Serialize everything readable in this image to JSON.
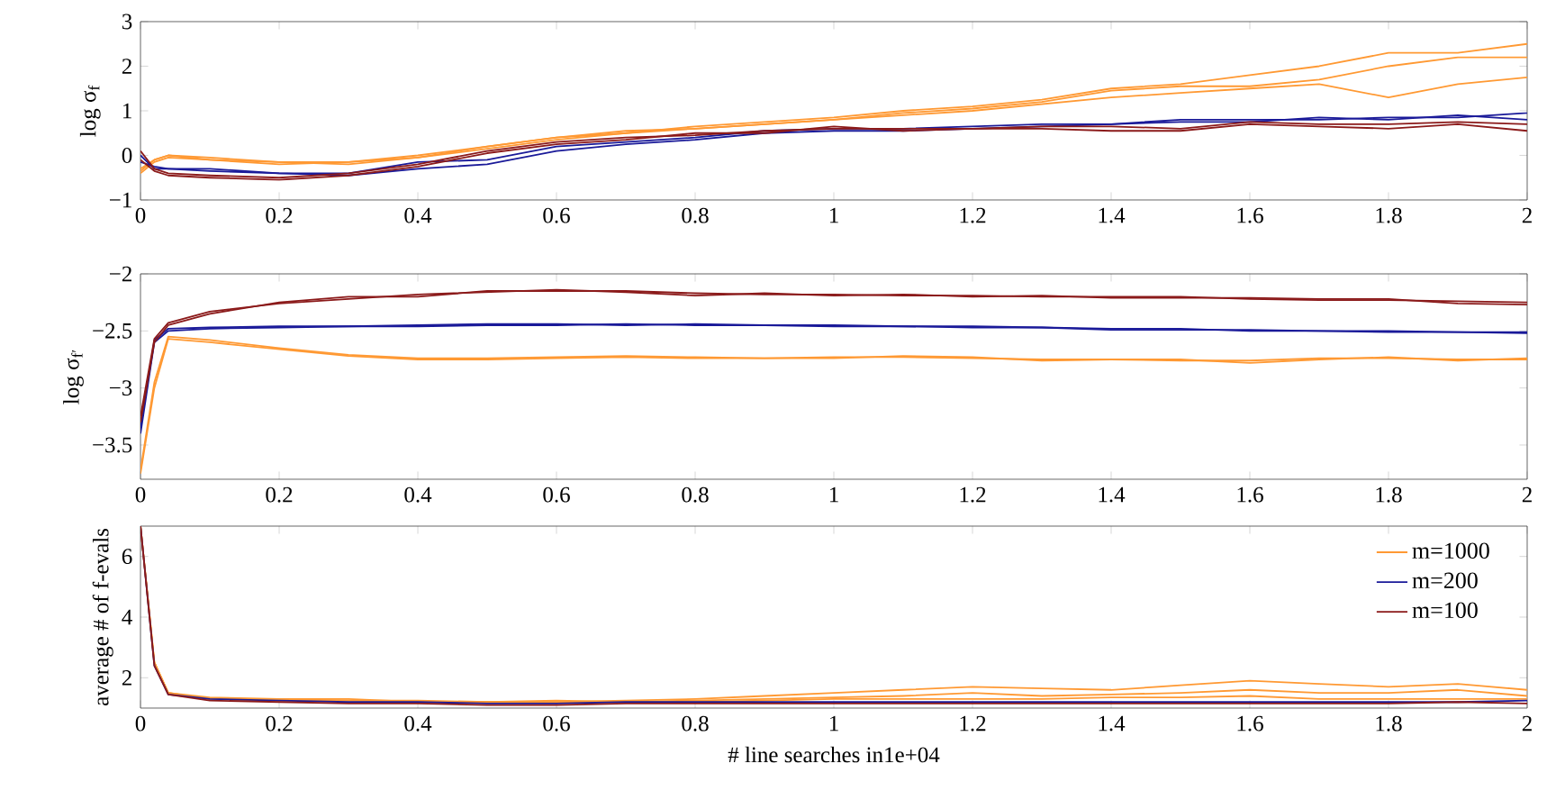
{
  "chart_data": [
    {
      "type": "line",
      "ylabel": "log σ$_{f}$",
      "x": [
        0,
        0.02,
        0.04,
        0.1,
        0.2,
        0.3,
        0.4,
        0.5,
        0.6,
        0.7,
        0.8,
        0.9,
        1.0,
        1.1,
        1.2,
        1.3,
        1.4,
        1.5,
        1.6,
        1.7,
        1.8,
        1.9,
        2.0
      ],
      "xlim": [
        0,
        2
      ],
      "ylim": [
        -1,
        3
      ],
      "xticks": [
        0,
        0.2,
        0.4,
        0.6,
        0.8,
        1,
        1.2,
        1.4,
        1.6,
        1.8,
        2
      ],
      "yticks": [
        {
          "value": -1,
          "label": "−1"
        },
        0,
        1,
        2,
        3
      ],
      "legend": false,
      "series": [
        {
          "color": "#ff9933",
          "values": [
            -0.3,
            -0.1,
            0.0,
            -0.05,
            -0.15,
            -0.15,
            0.0,
            0.2,
            0.4,
            0.5,
            0.65,
            0.75,
            0.85,
            1.0,
            1.1,
            1.25,
            1.5,
            1.6,
            1.8,
            2.0,
            2.3,
            2.3,
            2.5
          ]
        },
        {
          "color": "#ff9933",
          "values": [
            -0.4,
            -0.15,
            -0.05,
            -0.1,
            -0.15,
            -0.2,
            -0.05,
            0.15,
            0.35,
            0.5,
            0.6,
            0.7,
            0.8,
            0.95,
            1.05,
            1.2,
            1.45,
            1.55,
            1.55,
            1.7,
            2.0,
            2.2,
            2.2
          ]
        },
        {
          "color": "#ff9933",
          "values": [
            -0.35,
            -0.1,
            0.0,
            -0.1,
            -0.2,
            -0.15,
            -0.05,
            0.2,
            0.4,
            0.55,
            0.6,
            0.7,
            0.8,
            0.9,
            1.0,
            1.15,
            1.3,
            1.4,
            1.5,
            1.6,
            1.3,
            1.6,
            1.75
          ]
        },
        {
          "color": "#1a1a99",
          "values": [
            0.0,
            -0.3,
            -0.3,
            -0.35,
            -0.4,
            -0.4,
            -0.15,
            -0.1,
            0.2,
            0.3,
            0.4,
            0.55,
            0.6,
            0.6,
            0.65,
            0.7,
            0.7,
            0.8,
            0.8,
            0.8,
            0.85,
            0.85,
            0.95
          ]
        },
        {
          "color": "#1a1a99",
          "values": [
            -0.15,
            -0.25,
            -0.3,
            -0.3,
            -0.4,
            -0.45,
            -0.3,
            -0.2,
            0.1,
            0.25,
            0.35,
            0.5,
            0.55,
            0.55,
            0.6,
            0.65,
            0.7,
            0.75,
            0.75,
            0.85,
            0.8,
            0.9,
            0.8
          ]
        },
        {
          "color": "#8b1a1a",
          "values": [
            0.1,
            -0.3,
            -0.4,
            -0.45,
            -0.5,
            -0.4,
            -0.2,
            0.1,
            0.3,
            0.4,
            0.45,
            0.55,
            0.6,
            0.6,
            0.6,
            0.65,
            0.65,
            0.6,
            0.75,
            0.7,
            0.7,
            0.75,
            0.7
          ]
        },
        {
          "color": "#8b1a1a",
          "values": [
            -0.1,
            -0.35,
            -0.45,
            -0.5,
            -0.55,
            -0.45,
            -0.25,
            0.05,
            0.25,
            0.35,
            0.5,
            0.5,
            0.65,
            0.55,
            0.6,
            0.6,
            0.55,
            0.55,
            0.7,
            0.65,
            0.6,
            0.7,
            0.55
          ]
        }
      ]
    },
    {
      "type": "line",
      "ylabel": "log σ$_{f′}$",
      "x": [
        0,
        0.02,
        0.04,
        0.1,
        0.2,
        0.3,
        0.4,
        0.5,
        0.6,
        0.7,
        0.8,
        0.9,
        1.0,
        1.1,
        1.2,
        1.3,
        1.4,
        1.5,
        1.6,
        1.7,
        1.8,
        1.9,
        2.0
      ],
      "xlim": [
        0,
        2
      ],
      "ylim": [
        -3.8,
        -2
      ],
      "xticks": [
        0,
        0.2,
        0.4,
        0.6,
        0.8,
        1,
        1.2,
        1.4,
        1.6,
        1.8,
        2
      ],
      "yticks": [
        {
          "value": -3.5,
          "label": "−3.5"
        },
        {
          "value": -3,
          "label": "−3"
        },
        {
          "value": -2.5,
          "label": "−2.5"
        },
        {
          "value": -2,
          "label": "−2"
        }
      ],
      "legend": false,
      "series": [
        {
          "color": "#ff9933",
          "values": [
            -3.75,
            -3.0,
            -2.57,
            -2.6,
            -2.66,
            -2.72,
            -2.75,
            -2.75,
            -2.74,
            -2.73,
            -2.74,
            -2.74,
            -2.73,
            -2.73,
            -2.74,
            -2.75,
            -2.75,
            -2.76,
            -2.76,
            -2.74,
            -2.74,
            -2.75,
            -2.75
          ]
        },
        {
          "color": "#ff9933",
          "values": [
            -3.72,
            -2.95,
            -2.55,
            -2.58,
            -2.65,
            -2.71,
            -2.74,
            -2.74,
            -2.73,
            -2.72,
            -2.73,
            -2.74,
            -2.74,
            -2.72,
            -2.73,
            -2.76,
            -2.75,
            -2.75,
            -2.78,
            -2.75,
            -2.73,
            -2.76,
            -2.74
          ]
        },
        {
          "color": "#1a1a99",
          "values": [
            -3.4,
            -2.6,
            -2.5,
            -2.48,
            -2.47,
            -2.46,
            -2.46,
            -2.45,
            -2.45,
            -2.44,
            -2.45,
            -2.45,
            -2.45,
            -2.46,
            -2.46,
            -2.47,
            -2.48,
            -2.48,
            -2.5,
            -2.5,
            -2.5,
            -2.51,
            -2.52
          ]
        },
        {
          "color": "#1a1a99",
          "values": [
            -3.35,
            -2.58,
            -2.48,
            -2.47,
            -2.46,
            -2.46,
            -2.45,
            -2.44,
            -2.44,
            -2.45,
            -2.44,
            -2.45,
            -2.46,
            -2.46,
            -2.47,
            -2.47,
            -2.49,
            -2.49,
            -2.49,
            -2.5,
            -2.51,
            -2.51,
            -2.51
          ]
        },
        {
          "color": "#8b1a1a",
          "values": [
            -3.3,
            -2.6,
            -2.45,
            -2.35,
            -2.25,
            -2.2,
            -2.2,
            -2.15,
            -2.15,
            -2.15,
            -2.17,
            -2.18,
            -2.18,
            -2.19,
            -2.19,
            -2.2,
            -2.2,
            -2.2,
            -2.22,
            -2.23,
            -2.23,
            -2.24,
            -2.25
          ]
        },
        {
          "color": "#8b1a1a",
          "values": [
            -3.25,
            -2.57,
            -2.43,
            -2.33,
            -2.26,
            -2.22,
            -2.18,
            -2.16,
            -2.14,
            -2.16,
            -2.19,
            -2.17,
            -2.19,
            -2.18,
            -2.2,
            -2.19,
            -2.21,
            -2.21,
            -2.21,
            -2.22,
            -2.22,
            -2.26,
            -2.27
          ]
        }
      ]
    },
    {
      "type": "line",
      "xlabel": "# line searches in1e+04",
      "ylabel": "average # of f-evals",
      "x": [
        0,
        0.02,
        0.04,
        0.1,
        0.2,
        0.3,
        0.4,
        0.5,
        0.6,
        0.7,
        0.8,
        0.9,
        1.0,
        1.1,
        1.2,
        1.3,
        1.4,
        1.5,
        1.6,
        1.7,
        1.8,
        1.9,
        2.0
      ],
      "xlim": [
        0,
        2
      ],
      "ylim": [
        1,
        7
      ],
      "xticks": [
        0,
        0.2,
        0.4,
        0.6,
        0.8,
        1,
        1.2,
        1.4,
        1.6,
        1.8,
        2
      ],
      "yticks": [
        2,
        4,
        6
      ],
      "legend": "top right",
      "series": [
        {
          "name": "m=1000",
          "color": "#ff9933",
          "values": [
            7,
            2.5,
            1.5,
            1.3,
            1.3,
            1.25,
            1.25,
            1.2,
            1.2,
            1.25,
            1.3,
            1.4,
            1.5,
            1.6,
            1.7,
            1.65,
            1.6,
            1.75,
            1.9,
            1.8,
            1.7,
            1.8,
            1.6
          ]
        },
        {
          "color": "#ff9933",
          "values": [
            7,
            2.5,
            1.5,
            1.35,
            1.3,
            1.3,
            1.2,
            1.2,
            1.25,
            1.2,
            1.25,
            1.3,
            1.35,
            1.4,
            1.5,
            1.4,
            1.45,
            1.5,
            1.6,
            1.5,
            1.5,
            1.6,
            1.4
          ]
        },
        {
          "color": "#ff9933",
          "values": [
            7,
            2.5,
            1.5,
            1.3,
            1.25,
            1.25,
            1.2,
            1.2,
            1.2,
            1.2,
            1.2,
            1.25,
            1.3,
            1.3,
            1.3,
            1.3,
            1.35,
            1.35,
            1.4,
            1.3,
            1.3,
            1.3,
            1.3
          ]
        },
        {
          "name": "m=200",
          "color": "#1a1a99",
          "values": [
            7,
            2.4,
            1.45,
            1.3,
            1.25,
            1.2,
            1.2,
            1.15,
            1.15,
            1.2,
            1.2,
            1.2,
            1.2,
            1.2,
            1.2,
            1.2,
            1.2,
            1.2,
            1.2,
            1.2,
            1.2,
            1.2,
            1.25
          ]
        },
        {
          "name": "m=100",
          "color": "#8b1a1a",
          "values": [
            7,
            2.4,
            1.45,
            1.25,
            1.2,
            1.15,
            1.15,
            1.1,
            1.1,
            1.15,
            1.15,
            1.15,
            1.15,
            1.15,
            1.15,
            1.15,
            1.15,
            1.15,
            1.15,
            1.15,
            1.15,
            1.2,
            1.15
          ]
        }
      ]
    }
  ]
}
